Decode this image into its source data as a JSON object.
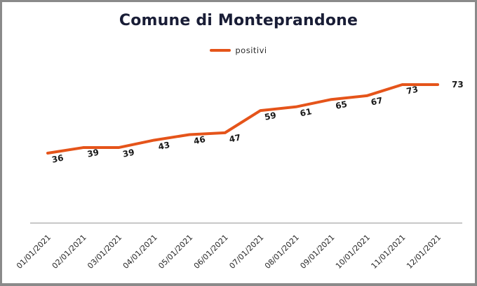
{
  "window": {
    "border_color": "#8a8a8a",
    "background": "#ffffff"
  },
  "colors": {
    "series_line": "#e5541a",
    "title_text": "#191d36",
    "data_label_text": "#1a1a1a",
    "axis_line": "#a6a6a6",
    "axis_label_text": "#262626",
    "legend_text": "#2b2b2b"
  },
  "chart_data": {
    "type": "line",
    "title": "Comune di Monteprandone",
    "categories": [
      "01/01/2021",
      "02/01/2021",
      "03/01/2021",
      "04/01/2021",
      "05/01/2021",
      "06/01/2021",
      "07/01/2021",
      "08/01/2021",
      "09/01/2021",
      "10/01/2021",
      "11/01/2021",
      "12/01/2021"
    ],
    "series": [
      {
        "name": "positivi",
        "color": "#e5541a",
        "values": [
          36,
          39,
          39,
          43,
          46,
          47,
          59,
          61,
          65,
          67,
          73,
          73
        ]
      }
    ],
    "data_labels": true,
    "legend_position": "top",
    "gridlines": false,
    "y_axis_visible": false,
    "x_axis_label_rotation": -45
  }
}
